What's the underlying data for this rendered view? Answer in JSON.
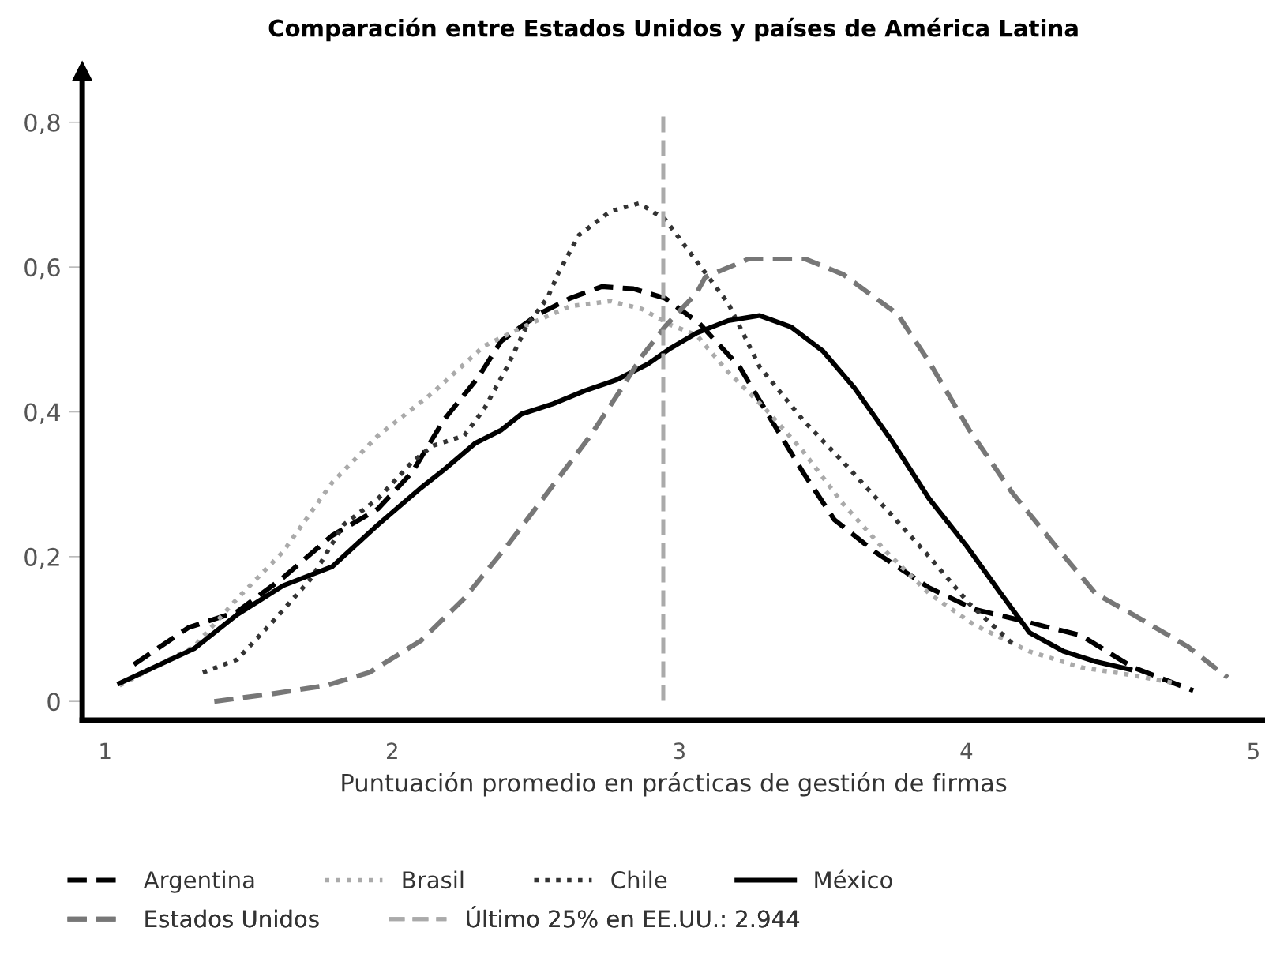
{
  "chart_data": {
    "type": "line",
    "title": "Comparación entre Estados Unidos y países de América Latina",
    "xlabel": "Puntuación promedio en prácticas de gestión de firmas",
    "xlim": [
      0.92,
      5.04
    ],
    "ylim": [
      -0.026,
      0.87
    ],
    "xticks": [
      1,
      2,
      3,
      4,
      5
    ],
    "yticks": [
      0,
      {
        "value": 0.2,
        "label": "0,2"
      },
      {
        "value": 0.4,
        "label": "0,4"
      },
      {
        "value": 0.6,
        "label": "0,6"
      },
      {
        "value": 0.8,
        "label": "0,8"
      }
    ],
    "grid": false,
    "legend": "bottom",
    "marker": "none",
    "series": [
      {
        "name": "Argentina",
        "color": "#000000",
        "line_style": "dashed",
        "x": [
          1.1,
          1.29,
          1.46,
          1.62,
          1.79,
          1.95,
          2.07,
          2.18,
          2.3,
          2.38,
          2.51,
          2.62,
          2.73,
          2.84,
          2.95,
          3.07,
          3.21,
          3.32,
          3.43,
          3.54,
          3.68,
          3.87,
          4.03,
          4.22,
          4.4,
          4.58,
          4.79
        ],
        "values": [
          0.051,
          0.102,
          0.124,
          0.171,
          0.229,
          0.266,
          0.317,
          0.389,
          0.448,
          0.498,
          0.535,
          0.557,
          0.573,
          0.57,
          0.557,
          0.522,
          0.462,
          0.389,
          0.317,
          0.251,
          0.207,
          0.157,
          0.127,
          0.109,
          0.091,
          0.047,
          0.015
        ]
      },
      {
        "name": "Brasil",
        "color": "#aaaaaa",
        "line_style": "dotted",
        "x": [
          1.05,
          1.31,
          1.46,
          1.62,
          1.79,
          1.95,
          2.14,
          2.32,
          2.47,
          2.62,
          2.76,
          2.87,
          2.97,
          3.06,
          3.17,
          3.3,
          3.43,
          3.57,
          3.72,
          3.87,
          4.03,
          4.22,
          4.4,
          4.58,
          4.73
        ],
        "values": [
          0.022,
          0.076,
          0.142,
          0.207,
          0.302,
          0.367,
          0.426,
          0.491,
          0.52,
          0.546,
          0.553,
          0.542,
          0.52,
          0.506,
          0.455,
          0.404,
          0.346,
          0.273,
          0.207,
          0.149,
          0.105,
          0.069,
          0.047,
          0.036,
          0.025
        ]
      },
      {
        "name": "Chile",
        "color": "#333333",
        "line_style": "dotted",
        "x": [
          1.34,
          1.46,
          1.59,
          1.72,
          1.83,
          1.95,
          2.07,
          2.14,
          2.25,
          2.32,
          2.4,
          2.47,
          2.54,
          2.58,
          2.65,
          2.76,
          2.86,
          2.95,
          3.06,
          3.17,
          3.28,
          3.43,
          3.57,
          3.72,
          3.87,
          4.01,
          4.16
        ],
        "values": [
          0.04,
          0.058,
          0.113,
          0.171,
          0.244,
          0.28,
          0.331,
          0.353,
          0.367,
          0.404,
          0.462,
          0.52,
          0.557,
          0.593,
          0.644,
          0.677,
          0.688,
          0.666,
          0.608,
          0.55,
          0.462,
          0.389,
          0.331,
          0.266,
          0.2,
          0.135,
          0.08
        ]
      },
      {
        "name": "México",
        "color": "#000000",
        "line_style": "solid",
        "x": [
          1.05,
          1.31,
          1.46,
          1.62,
          1.79,
          1.95,
          2.1,
          2.18,
          2.29,
          2.38,
          2.45,
          2.56,
          2.67,
          2.78,
          2.89,
          2.97,
          3.06,
          3.17,
          3.28,
          3.39,
          3.5,
          3.61,
          3.74,
          3.87,
          4.0,
          4.12,
          4.22,
          4.34,
          4.45,
          4.57
        ],
        "values": [
          0.025,
          0.073,
          0.12,
          0.16,
          0.186,
          0.244,
          0.295,
          0.32,
          0.357,
          0.375,
          0.397,
          0.411,
          0.429,
          0.444,
          0.466,
          0.488,
          0.509,
          0.526,
          0.533,
          0.517,
          0.484,
          0.433,
          0.36,
          0.28,
          0.215,
          0.149,
          0.095,
          0.069,
          0.055,
          0.044
        ]
      },
      {
        "name": "Estados Unidos",
        "color": "#777777",
        "line_style": "dashed",
        "x": [
          1.38,
          1.59,
          1.77,
          1.92,
          2.1,
          2.25,
          2.4,
          2.54,
          2.69,
          2.8,
          2.87,
          2.95,
          3.06,
          3.09,
          3.24,
          3.44,
          3.57,
          3.76,
          3.87,
          4.01,
          4.16,
          4.31,
          4.45,
          4.58,
          4.77,
          4.91
        ],
        "values": [
          0.0,
          0.011,
          0.022,
          0.04,
          0.084,
          0.142,
          0.215,
          0.288,
          0.367,
          0.433,
          0.477,
          0.518,
          0.564,
          0.586,
          0.611,
          0.611,
          0.59,
          0.535,
          0.469,
          0.375,
          0.288,
          0.215,
          0.149,
          0.12,
          0.076,
          0.033
        ]
      }
    ],
    "ref_lines": [
      {
        "axis": "x",
        "value": 2.944,
        "label": "Último 25% en EE.UU.: 2.944",
        "color": "#aaaaaa",
        "line_style": "dashed"
      }
    ]
  }
}
